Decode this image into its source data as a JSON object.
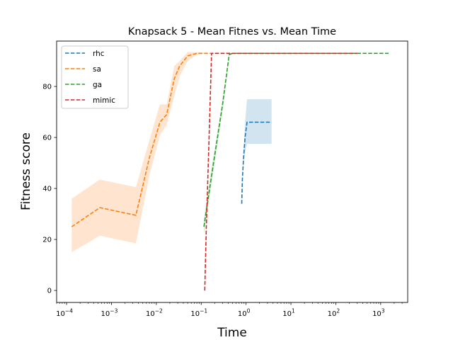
{
  "chart_data": {
    "type": "line",
    "title": "Knapsack 5 - Mean Fitnes vs. Mean Time",
    "xlabel": "Time",
    "ylabel": "Fitness score",
    "xscale": "log",
    "xlim": [
      6e-05,
      4000
    ],
    "ylim": [
      -4.7,
      97.8
    ],
    "x_ticks": [
      0.0001,
      0.001,
      0.01,
      0.1,
      1,
      10,
      100,
      1000
    ],
    "x_tick_labels": [
      {
        "base": "10",
        "exp": "−4"
      },
      {
        "base": "10",
        "exp": "−3"
      },
      {
        "base": "10",
        "exp": "−2"
      },
      {
        "base": "10",
        "exp": "−1"
      },
      {
        "base": "10",
        "exp": "0"
      },
      {
        "base": "10",
        "exp": "1"
      },
      {
        "base": "10",
        "exp": "2"
      },
      {
        "base": "10",
        "exp": "3"
      }
    ],
    "y_ticks": [
      0,
      20,
      40,
      60,
      80
    ],
    "y_tick_labels": [
      "0",
      "20",
      "40",
      "60",
      "80"
    ],
    "grid": false,
    "legend_position": "top-left",
    "series": [
      {
        "name": "rhc",
        "color": "#1f77b4",
        "x": [
          0.8,
          0.83,
          0.88,
          0.95,
          1.05,
          1.5,
          3.7
        ],
        "y": [
          34,
          44,
          52,
          60,
          66,
          66,
          66
        ],
        "band_lower": [
          34,
          44,
          50,
          54,
          57.5,
          57.5,
          57.5
        ],
        "band_upper": [
          34,
          44,
          54,
          66,
          75,
          75,
          75
        ]
      },
      {
        "name": "sa",
        "color": "#ff7f0e",
        "x": [
          0.00013,
          0.00055,
          0.0035,
          0.007,
          0.012,
          0.017,
          0.025,
          0.033,
          0.05,
          0.08,
          0.15,
          0.3,
          1,
          10,
          100,
          300
        ],
        "y": [
          25,
          32.5,
          29.5,
          52,
          66,
          69,
          83,
          88,
          92,
          93,
          93,
          93,
          93,
          93,
          93,
          93
        ],
        "band_lower": [
          15,
          21.5,
          18.5,
          45,
          61,
          65,
          76,
          84,
          90,
          92.5,
          93,
          93,
          93,
          93,
          93,
          93
        ],
        "band_upper": [
          36,
          43.5,
          40.5,
          59,
          73,
          73,
          88,
          90,
          93.5,
          93.5,
          93,
          93,
          93,
          93,
          93,
          93
        ]
      },
      {
        "name": "ga",
        "color": "#2ca02c",
        "x": [
          0.115,
          0.17,
          0.3,
          0.42,
          0.5,
          1,
          10,
          100,
          1500
        ],
        "y": [
          25,
          45,
          73,
          92.5,
          93,
          93,
          93,
          93,
          93
        ],
        "band_lower": [
          22,
          42,
          71,
          92,
          93,
          93,
          93,
          93,
          93
        ],
        "band_upper": [
          28,
          48,
          75,
          93,
          93,
          93,
          93,
          93,
          93
        ]
      },
      {
        "name": "mimic",
        "color": "#d62728",
        "x": [
          0.12,
          0.13,
          0.15,
          0.17,
          0.5,
          1,
          10,
          100,
          300
        ],
        "y": [
          0,
          25,
          60,
          93,
          93,
          93,
          93,
          93,
          93
        ],
        "band_lower": [
          0,
          25,
          60,
          93,
          93,
          93,
          93,
          93,
          93
        ],
        "band_upper": [
          0,
          25,
          60,
          93,
          93,
          93,
          93,
          93,
          93
        ]
      }
    ]
  }
}
